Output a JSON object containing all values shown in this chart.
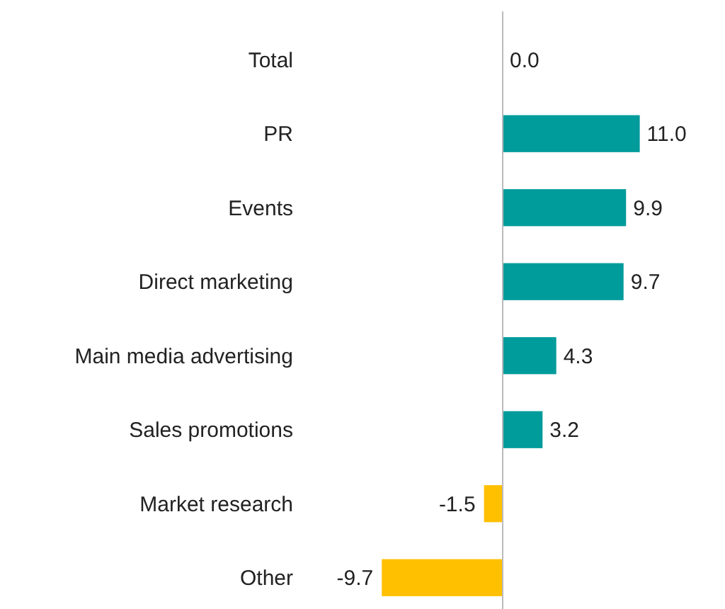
{
  "chart_data": {
    "type": "bar",
    "orientation": "horizontal",
    "categories": [
      "Total",
      "PR",
      "Events",
      "Direct marketing",
      "Main media advertising",
      "Sales promotions",
      "Market research",
      "Other"
    ],
    "values": [
      0.0,
      11.0,
      9.9,
      9.7,
      4.3,
      3.2,
      -1.5,
      -9.7
    ],
    "colors": [
      "#009b9b",
      "#009b9b",
      "#009b9b",
      "#009b9b",
      "#009b9b",
      "#009b9b",
      "#ffc000",
      "#ffc000"
    ],
    "value_labels": [
      "0.0",
      "11.0",
      "9.9",
      "9.7",
      "4.3",
      "3.2",
      "-1.5",
      "-9.7"
    ]
  }
}
